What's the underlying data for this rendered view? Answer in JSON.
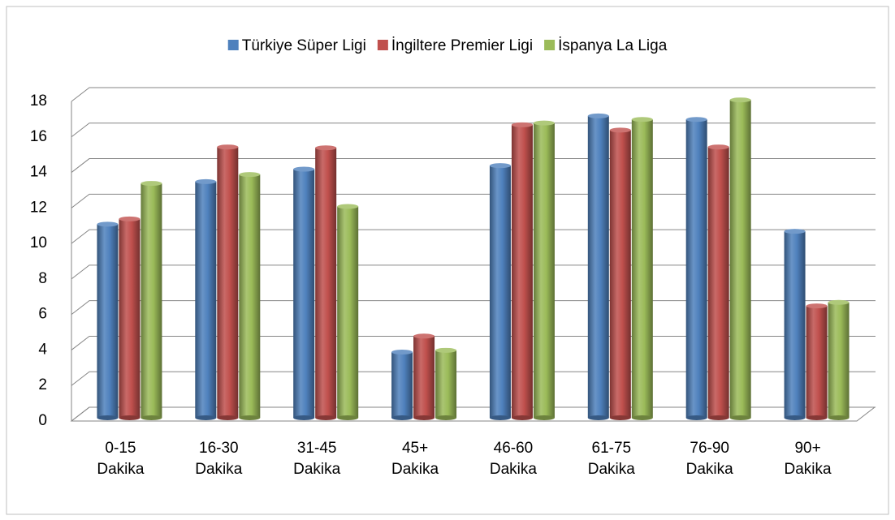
{
  "chart_data": {
    "type": "bar",
    "categories": [
      "0-15 Dakika",
      "16-30 Dakika",
      "31-45 Dakika",
      "45+ Dakika",
      "46-60 Dakika",
      "61-75 Dakika",
      "76-90 Dakika",
      "90+ Dakika"
    ],
    "series": [
      {
        "name": "Türkiye Süper Ligi",
        "color": "#4f81bd",
        "values": [
          10.9,
          13.3,
          14.0,
          3.7,
          14.2,
          17.0,
          16.8,
          10.5
        ]
      },
      {
        "name": "İngiltere Premier Ligi",
        "color": "#c0504d",
        "values": [
          11.2,
          15.25,
          15.2,
          4.6,
          16.5,
          16.2,
          15.25,
          6.3
        ]
      },
      {
        "name": "İspanya La Liga",
        "color": "#9bbb59",
        "values": [
          13.2,
          13.7,
          11.9,
          3.8,
          16.6,
          16.8,
          17.9,
          6.5
        ]
      }
    ],
    "ylim": [
      0,
      18
    ],
    "yticks": [
      0,
      2,
      4,
      6,
      8,
      10,
      12,
      14,
      16,
      18
    ],
    "grid": true,
    "legend": "top"
  }
}
